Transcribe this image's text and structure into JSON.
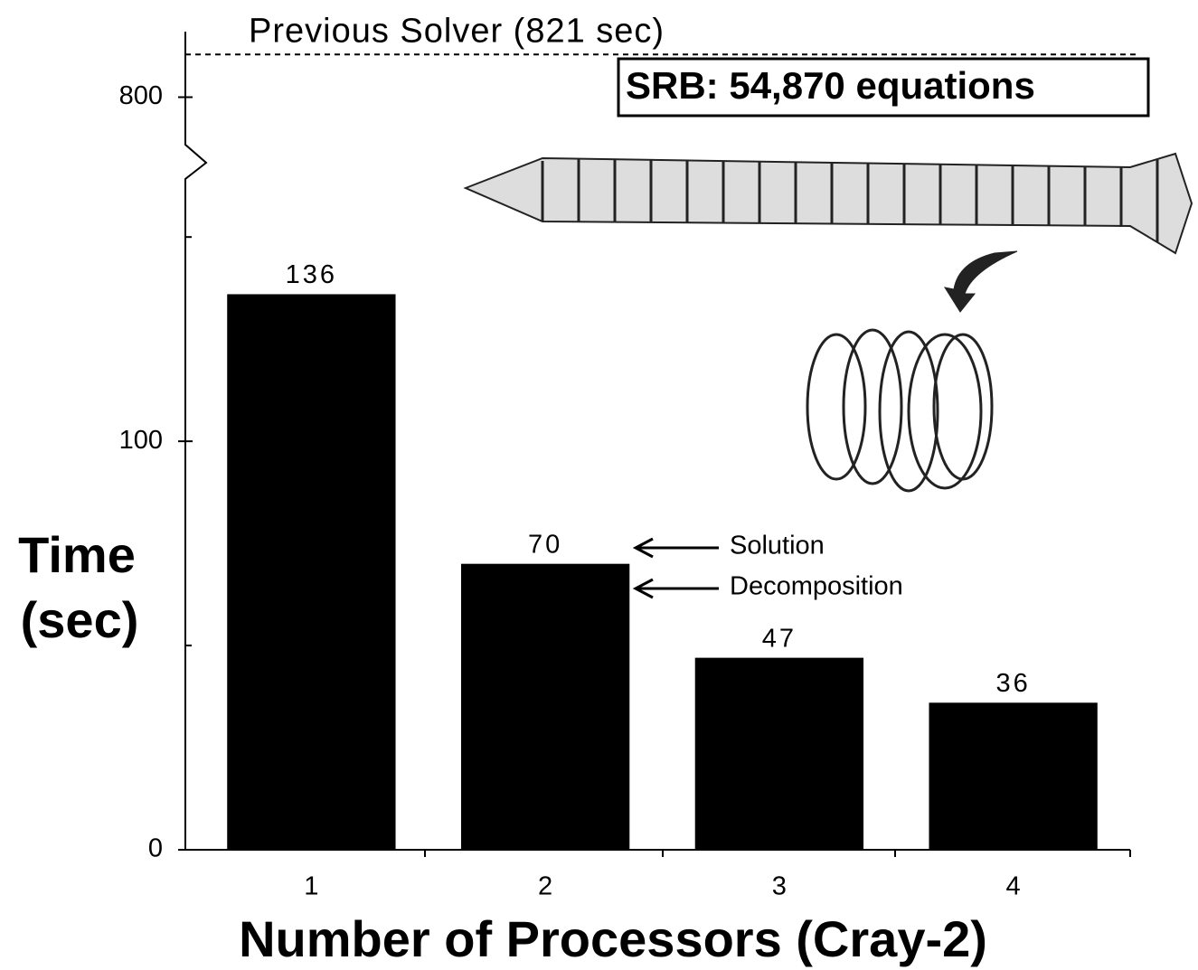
{
  "chart_data": {
    "type": "bar",
    "categories": [
      "1",
      "2",
      "3",
      "4"
    ],
    "values": [
      136,
      70,
      47,
      36
    ],
    "color": "#000000",
    "xlabel": "Number of Processors (Cray-2)",
    "ylabel": [
      "Time",
      "(sec)"
    ],
    "ylim": [
      0,
      160
    ],
    "yticks": [
      0,
      100,
      800
    ],
    "minor_yticks": [
      50,
      150
    ],
    "y_upper_lim": [
      770,
      830
    ],
    "reference_lines": [
      {
        "value": 821,
        "label": "Previous Solver (821 sec)"
      }
    ],
    "annotations": {
      "model": "SRB: 54,870 equations",
      "top_part": "Solution",
      "bottom_part": "Decomposition"
    }
  }
}
